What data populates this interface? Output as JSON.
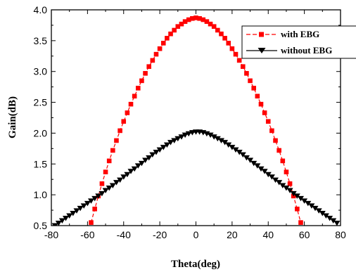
{
  "chart_data": {
    "type": "line",
    "title": "",
    "xlabel": "Theta(deg)",
    "ylabel": "Gain(dB)",
    "xlim": [
      -80,
      80
    ],
    "ylim": [
      0.5,
      4.0
    ],
    "xticks": [
      -80,
      -60,
      -40,
      -20,
      0,
      20,
      40,
      60,
      80
    ],
    "yticks": [
      0.5,
      1.0,
      1.5,
      2.0,
      2.5,
      3.0,
      3.5,
      4.0
    ],
    "xtick_labels": [
      "-80",
      "-60",
      "-40",
      "-20",
      "0",
      "20",
      "40",
      "60",
      "80"
    ],
    "ytick_labels": [
      "0.5",
      "1.0",
      "1.5",
      "2.0",
      "2.5",
      "3.0",
      "3.5",
      "4.0"
    ],
    "grid": false,
    "legend_position": "top-right",
    "x": [
      -78,
      -74,
      -70,
      -66,
      -62,
      -58,
      -54,
      -50,
      -46,
      -42,
      -38,
      -34,
      -30,
      -26,
      -22,
      -18,
      -14,
      -10,
      -6,
      -2,
      2,
      6,
      10,
      14,
      18,
      22,
      26,
      30,
      34,
      38,
      42,
      46,
      50,
      54,
      58,
      62,
      66,
      70,
      74,
      78
    ],
    "series": [
      {
        "name": "with EBG",
        "color": "#ff0000",
        "marker": "square",
        "x": [
          -58,
          -56,
          -54,
          -52,
          -50,
          -48,
          -46,
          -44,
          -42,
          -40,
          -38,
          -36,
          -34,
          -32,
          -30,
          -28,
          -26,
          -24,
          -22,
          -20,
          -18,
          -16,
          -14,
          -12,
          -10,
          -8,
          -6,
          -4,
          -2,
          0,
          2,
          4,
          6,
          8,
          10,
          12,
          14,
          16,
          18,
          20,
          22,
          24,
          26,
          28,
          30,
          32,
          34,
          36,
          38,
          40,
          42,
          44,
          46,
          48,
          50,
          52,
          54,
          56,
          58
        ],
        "values": [
          0.55,
          0.77,
          0.98,
          1.18,
          1.37,
          1.55,
          1.72,
          1.88,
          2.04,
          2.19,
          2.33,
          2.47,
          2.6,
          2.73,
          2.85,
          2.97,
          3.08,
          3.18,
          3.28,
          3.37,
          3.46,
          3.54,
          3.61,
          3.67,
          3.73,
          3.77,
          3.81,
          3.84,
          3.86,
          3.87,
          3.86,
          3.84,
          3.81,
          3.77,
          3.73,
          3.67,
          3.61,
          3.54,
          3.46,
          3.37,
          3.28,
          3.18,
          3.08,
          2.97,
          2.85,
          2.73,
          2.6,
          2.47,
          2.33,
          2.19,
          2.04,
          1.88,
          1.72,
          1.55,
          1.37,
          1.18,
          0.98,
          0.77,
          0.55
        ]
      },
      {
        "name": "without EBG",
        "color": "#000000",
        "marker": "triangle-down",
        "x": [
          -78,
          -76,
          -74,
          -72,
          -70,
          -68,
          -66,
          -64,
          -62,
          -60,
          -58,
          -56,
          -54,
          -52,
          -50,
          -48,
          -46,
          -44,
          -42,
          -40,
          -38,
          -36,
          -34,
          -32,
          -30,
          -28,
          -26,
          -24,
          -22,
          -20,
          -18,
          -16,
          -14,
          -12,
          -10,
          -8,
          -6,
          -4,
          -2,
          0,
          2,
          4,
          6,
          8,
          10,
          12,
          14,
          16,
          18,
          20,
          22,
          24,
          26,
          28,
          30,
          32,
          34,
          36,
          38,
          40,
          42,
          44,
          46,
          48,
          50,
          52,
          54,
          56,
          58,
          60,
          62,
          64,
          66,
          68,
          70,
          72,
          74,
          76,
          78
        ],
        "values": [
          0.5,
          0.54,
          0.58,
          0.62,
          0.66,
          0.7,
          0.74,
          0.78,
          0.82,
          0.86,
          0.9,
          0.94,
          0.98,
          1.02,
          1.07,
          1.11,
          1.15,
          1.2,
          1.24,
          1.29,
          1.33,
          1.38,
          1.42,
          1.47,
          1.51,
          1.56,
          1.6,
          1.65,
          1.69,
          1.73,
          1.77,
          1.81,
          1.85,
          1.88,
          1.91,
          1.94,
          1.97,
          1.99,
          2.01,
          2.02,
          2.02,
          2.01,
          1.99,
          1.97,
          1.94,
          1.91,
          1.88,
          1.85,
          1.81,
          1.77,
          1.73,
          1.69,
          1.65,
          1.6,
          1.56,
          1.51,
          1.47,
          1.42,
          1.38,
          1.33,
          1.29,
          1.24,
          1.2,
          1.15,
          1.11,
          1.07,
          1.02,
          0.98,
          0.94,
          0.9,
          0.86,
          0.82,
          0.78,
          0.74,
          0.7,
          0.66,
          0.62,
          0.58,
          0.54
        ]
      }
    ]
  }
}
